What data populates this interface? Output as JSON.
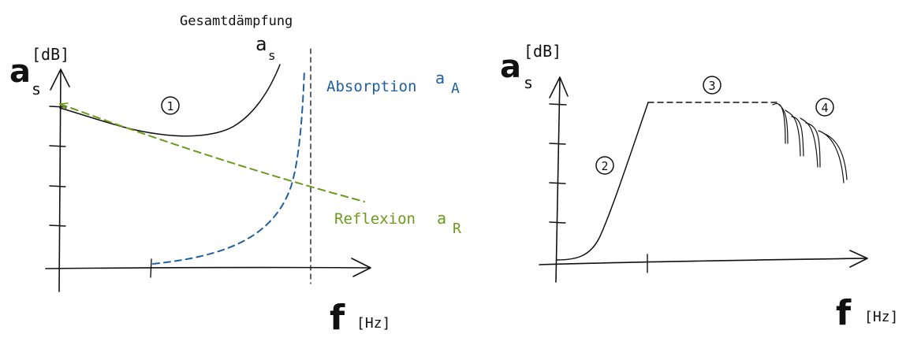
{
  "left_diagram": {
    "y_axis_symbol": "a",
    "y_axis_subscript": "s",
    "y_axis_unit": "[dB]",
    "x_axis_symbol": "f",
    "x_axis_unit": "[Hz]",
    "total_label": "Gesamtdämpfung",
    "total_symbol": "a",
    "total_subscript": "s",
    "absorption_label": "Absorption",
    "absorption_symbol": "a",
    "absorption_subscript": "A",
    "reflexion_label": "Reflexion",
    "reflexion_symbol": "a",
    "reflexion_subscript": "R",
    "marker_1": "1",
    "colors": {
      "line": "#111111",
      "absorption": "#1f5fa3",
      "reflexion": "#6b9a1c"
    }
  },
  "right_diagram": {
    "y_axis_symbol": "a",
    "y_axis_subscript": "s",
    "y_axis_unit": "[dB]",
    "x_axis_symbol": "f",
    "x_axis_unit": "[Hz]",
    "marker_2": "2",
    "marker_3": "3",
    "marker_4": "4"
  }
}
